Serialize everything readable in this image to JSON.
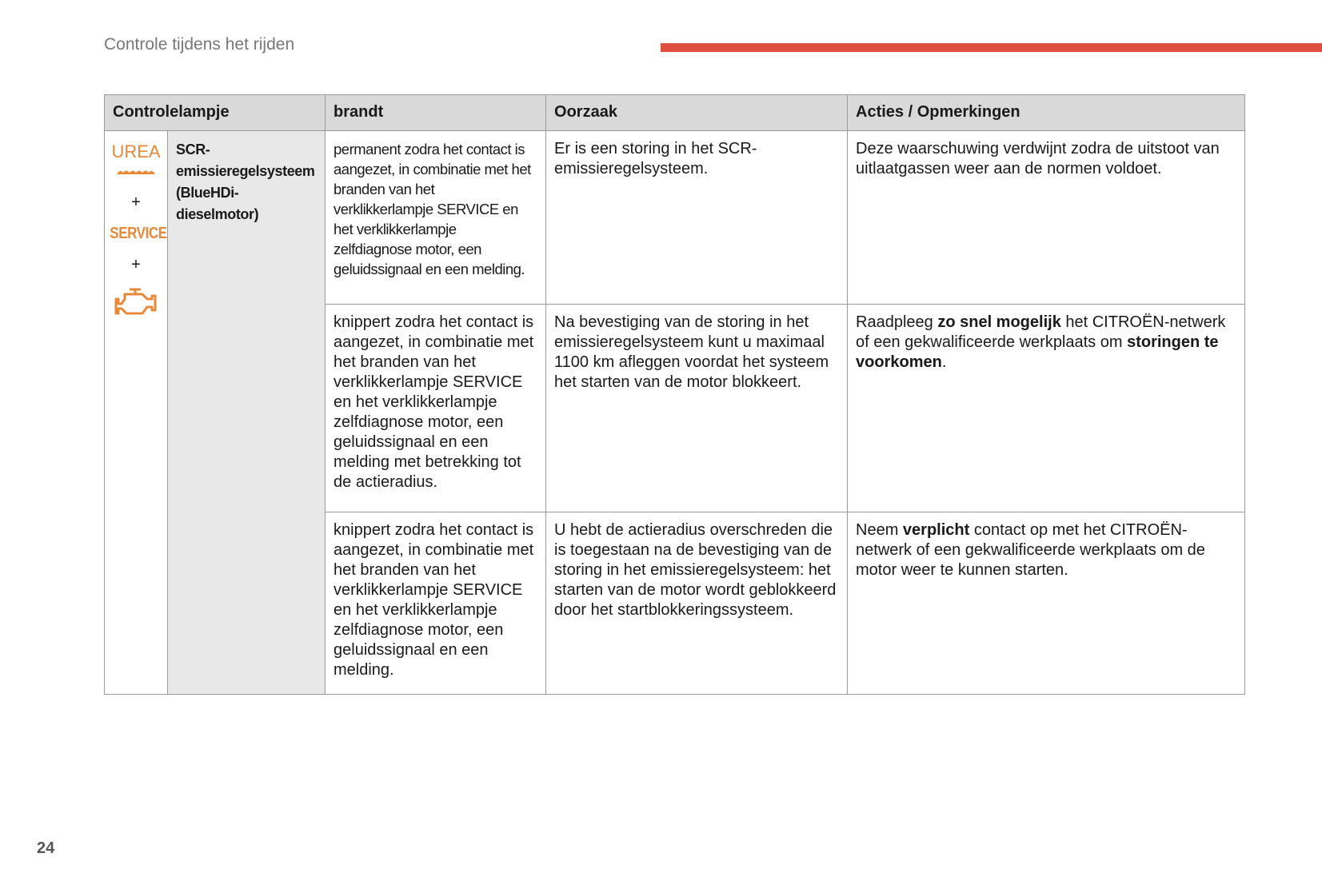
{
  "header": {
    "title": "Controle tijdens het rijden",
    "accent_color": "#e04e3f"
  },
  "page_number": "24",
  "table": {
    "headers": [
      "Controlelampje",
      "brandt",
      "Oorzaak",
      "Acties / Opmerkingen"
    ],
    "lamp": {
      "icons": [
        "urea-icon",
        "service-icon",
        "engine-check-icon"
      ],
      "urea_label": "UREA",
      "service_label": "SERVICE",
      "plus": "+",
      "icon_color": "#e8893a",
      "name": "SCR-emissieregelsysteem (BlueHDi-dieselmotor)"
    },
    "rows": [
      {
        "brandt": "permanent zodra het contact is aangezet, in combinatie met het branden van het verklikkerlampje SERVICE en het verklikkerlampje zelfdiagnose motor, een geluidssignaal en een melding.",
        "oorzaak": "Er is een storing in het SCR-emissieregelsysteem.",
        "acties": {
          "parts": [
            {
              "text": "Deze waarschuwing verdwijnt zodra de uitstoot van uitlaatgassen weer aan de normen voldoet."
            }
          ]
        }
      },
      {
        "brandt": "knippert zodra het contact is aangezet, in combinatie met het branden van het verklikkerlampje SERVICE en het verklikkerlampje zelfdiagnose motor, een geluidssignaal en een melding met betrekking tot de actieradius.",
        "oorzaak": "Na bevestiging van de storing in het emissieregelsysteem kunt u maximaal 1100 km afleggen voordat het systeem het starten van de motor blokkeert.",
        "acties": {
          "parts": [
            {
              "text": "Raadpleeg "
            },
            {
              "text": "zo snel mogelijk",
              "bold": true
            },
            {
              "text": " het CITROËN-netwerk of een gekwalificeerde werkplaats om "
            },
            {
              "text": "storingen te voorkomen",
              "bold": true
            },
            {
              "text": "."
            }
          ]
        }
      },
      {
        "brandt": "knippert zodra het contact is aangezet, in combinatie met het branden van het verklikkerlampje SERVICE en het verklikkerlampje zelfdiagnose motor, een geluidssignaal en een melding.",
        "oorzaak": "U hebt de actieradius overschreden die is toegestaan na de bevestiging van de storing in het emissieregelsysteem: het starten van de motor wordt geblokkeerd door het startblokkeringssysteem.",
        "acties": {
          "parts": [
            {
              "text": "Neem "
            },
            {
              "text": "verplicht",
              "bold": true
            },
            {
              "text": " contact op met het CITROËN-netwerk of een gekwalificeerde werkplaats om de motor weer te kunnen starten."
            }
          ]
        }
      }
    ]
  }
}
